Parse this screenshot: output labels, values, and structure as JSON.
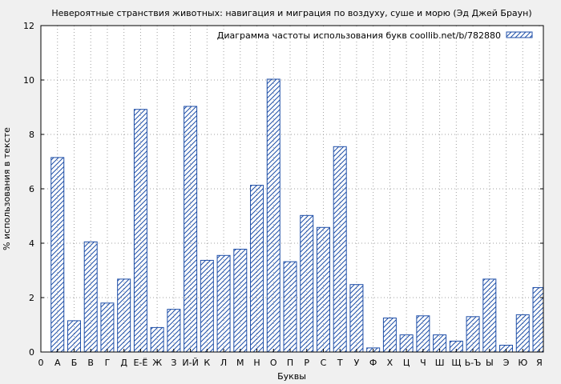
{
  "chart_data": {
    "type": "bar",
    "title": "Невероятные странствия животных: навигация и миграция по воздуху, суше и морю (Эд Джей Браун)",
    "xlabel": "Буквы",
    "ylabel": "% использования в тексте",
    "ylim": [
      0,
      12
    ],
    "yticks": [
      "0",
      "2",
      "4",
      "6",
      "8",
      "10",
      "12"
    ],
    "grid": true,
    "legend_position": "top-right",
    "bar_color": "#1f4fa8",
    "categories": [
      "0",
      "А",
      "Б",
      "В",
      "Г",
      "Д",
      "Е-Ё",
      "Ж",
      "З",
      "И-Й",
      "К",
      "Л",
      "М",
      "Н",
      "О",
      "П",
      "Р",
      "С",
      "Т",
      "У",
      "Ф",
      "Х",
      "Ц",
      "Ч",
      "Ш",
      "Щ",
      "Ь-Ъ",
      "Ы",
      "Э",
      "Ю",
      "Я"
    ],
    "series": [
      {
        "name": "Диаграмма частоты использования букв coollib.net/b/782880",
        "values": [
          0,
          7.15,
          1.15,
          4.05,
          1.8,
          2.68,
          8.92,
          0.9,
          1.57,
          9.03,
          3.37,
          3.55,
          3.78,
          6.13,
          10.03,
          3.32,
          5.02,
          4.58,
          7.55,
          2.48,
          0.15,
          1.25,
          0.63,
          1.33,
          0.63,
          0.4,
          1.3,
          2.68,
          0.25,
          1.37,
          2.37
        ]
      }
    ]
  }
}
